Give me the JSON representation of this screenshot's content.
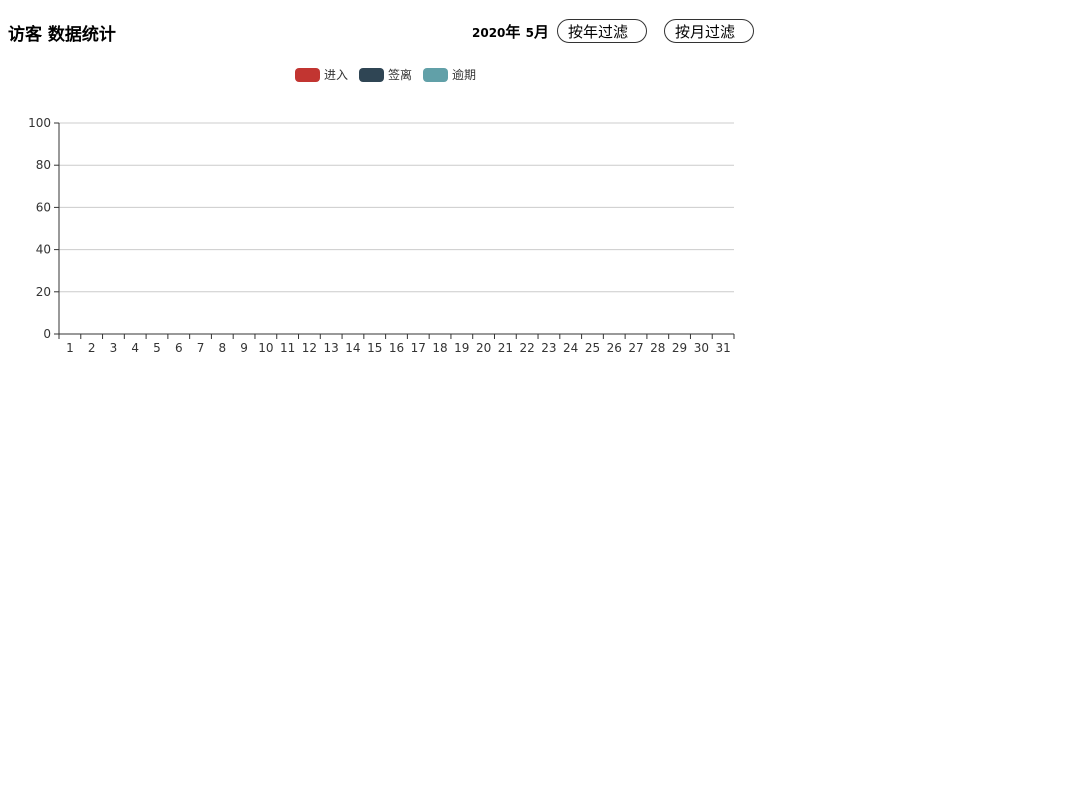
{
  "page": {
    "title": "访客 数据统计"
  },
  "filter": {
    "year": "2020",
    "year_unit": "年",
    "month": "5",
    "month_unit": "月",
    "by_year_label": "按年过滤",
    "by_month_label": "按月过滤"
  },
  "colors": {
    "enter": "#c23531",
    "leave": "#2f4554",
    "overdue": "#61a0a8",
    "grid": "#cccccc",
    "axis": "#333333"
  },
  "chart_data": {
    "type": "bar",
    "title": "",
    "xlabel": "",
    "ylabel": "",
    "ylim": [
      0,
      100
    ],
    "yticks": [
      0,
      20,
      40,
      60,
      80,
      100
    ],
    "categories": [
      "1",
      "2",
      "3",
      "4",
      "5",
      "6",
      "7",
      "8",
      "9",
      "10",
      "11",
      "12",
      "13",
      "14",
      "15",
      "16",
      "17",
      "18",
      "19",
      "20",
      "21",
      "22",
      "23",
      "24",
      "25",
      "26",
      "27",
      "28",
      "29",
      "30",
      "31"
    ],
    "legend_position": "top-center",
    "grid": true,
    "series": [
      {
        "name": "进入",
        "color": "#c23531",
        "values": [
          0,
          0,
          0,
          0,
          0,
          0,
          0,
          0,
          0,
          0,
          0,
          0,
          0,
          0,
          0,
          0,
          0,
          0,
          0,
          0,
          0,
          0,
          0,
          0,
          0,
          0,
          0,
          0,
          0,
          0,
          0
        ]
      },
      {
        "name": "签离",
        "color": "#2f4554",
        "values": [
          0,
          0,
          0,
          0,
          0,
          0,
          0,
          0,
          0,
          0,
          0,
          0,
          0,
          0,
          0,
          0,
          0,
          0,
          0,
          0,
          0,
          0,
          0,
          0,
          0,
          0,
          0,
          0,
          0,
          0,
          0
        ]
      },
      {
        "name": "逾期",
        "color": "#61a0a8",
        "values": [
          0,
          0,
          0,
          0,
          0,
          0,
          0,
          0,
          0,
          0,
          0,
          0,
          0,
          0,
          0,
          0,
          0,
          0,
          0,
          0,
          0,
          0,
          0,
          0,
          0,
          0,
          0,
          0,
          0,
          0,
          0
        ]
      }
    ]
  }
}
